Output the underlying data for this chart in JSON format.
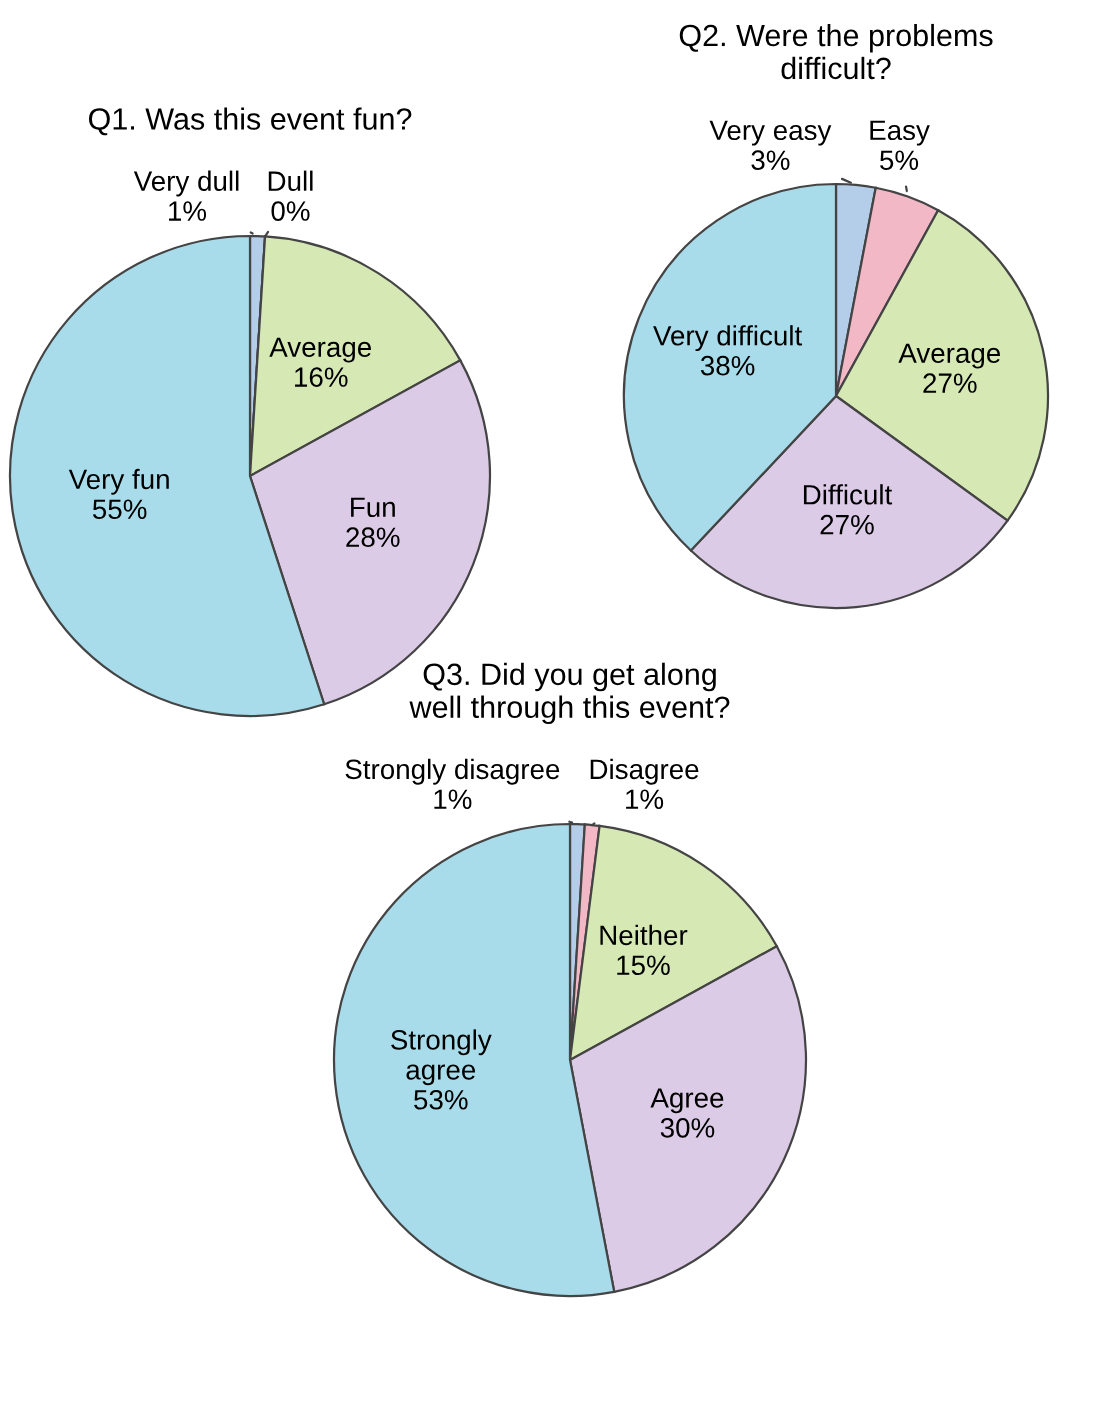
{
  "chart_data": [
    {
      "type": "pie",
      "title": "Q1. Was this event fun?",
      "categories": [
        "Very dull",
        "Dull",
        "Average",
        "Fun",
        "Very fun"
      ],
      "values": [
        1,
        0,
        16,
        28,
        55
      ],
      "value_labels": [
        "1%",
        "0%",
        "16%",
        "28%",
        "55%"
      ],
      "colors": [
        "#b4cde8",
        "#f2b8c6",
        "#d6e8b4",
        "#dccbe6",
        "#a8dcea"
      ]
    },
    {
      "type": "pie",
      "title": "Q2. Were the problems\ndifficult?",
      "categories": [
        "Very easy",
        "Easy",
        "Average",
        "Difficult",
        "Very difficult"
      ],
      "values": [
        3,
        5,
        27,
        27,
        38
      ],
      "value_labels": [
        "3%",
        "5%",
        "27%",
        "27%",
        "38%"
      ],
      "colors": [
        "#b4cde8",
        "#f2b8c6",
        "#d6e8b4",
        "#dccbe6",
        "#a8dcea"
      ]
    },
    {
      "type": "pie",
      "title": "Q3. Did you get along\nwell through this event?",
      "categories": [
        "Strongly disagree",
        "Disagree",
        "Neither",
        "Agree",
        "Strongly\nagree"
      ],
      "values": [
        1,
        1,
        15,
        30,
        53
      ],
      "value_labels": [
        "1%",
        "1%",
        "15%",
        "30%",
        "53%"
      ],
      "colors": [
        "#b4cde8",
        "#f2b8c6",
        "#d6e8b4",
        "#dccbe6",
        "#a8dcea"
      ]
    }
  ]
}
